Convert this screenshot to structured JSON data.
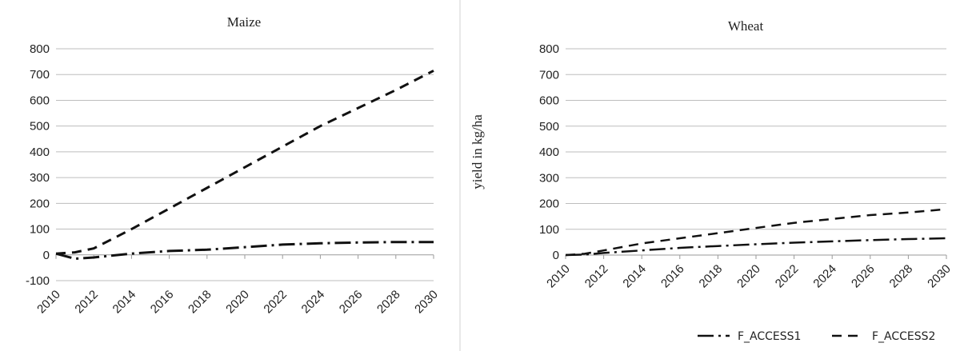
{
  "chart_data": [
    {
      "type": "line",
      "title": "Maize",
      "xlabel": "",
      "ylabel": "",
      "ylim": [
        -100,
        800
      ],
      "yticks": [
        -100,
        0,
        100,
        200,
        300,
        400,
        500,
        600,
        700,
        800
      ],
      "xlim": [
        2010,
        2030
      ],
      "xticks": [
        2010,
        2012,
        2014,
        2016,
        2018,
        2020,
        2022,
        2024,
        2026,
        2028,
        2030
      ],
      "grid": true,
      "series": [
        {
          "name": "F_ACCESS1",
          "x": [
            2010,
            2011,
            2012,
            2014,
            2016,
            2018,
            2020,
            2022,
            2024,
            2026,
            2028,
            2030
          ],
          "y": [
            5,
            -15,
            -10,
            5,
            15,
            20,
            30,
            40,
            45,
            48,
            50,
            50
          ]
        },
        {
          "name": "F_ACCESS2",
          "x": [
            2010,
            2011,
            2012,
            2014,
            2016,
            2018,
            2020,
            2022,
            2024,
            2026,
            2028,
            2030
          ],
          "y": [
            5,
            10,
            25,
            100,
            180,
            260,
            340,
            420,
            500,
            570,
            640,
            715
          ]
        }
      ]
    },
    {
      "type": "line",
      "title": "Wheat",
      "xlabel": "",
      "ylabel": "yield  in kg/ha",
      "ylim": [
        0,
        800
      ],
      "yticks": [
        0,
        100,
        200,
        300,
        400,
        500,
        600,
        700,
        800
      ],
      "xlim": [
        2010,
        2030
      ],
      "xticks": [
        2010,
        2012,
        2014,
        2016,
        2018,
        2020,
        2022,
        2024,
        2026,
        2028,
        2030
      ],
      "grid": true,
      "legend": "bottom-right",
      "series": [
        {
          "name": "F_ACCESS1",
          "x": [
            2010,
            2011,
            2012,
            2014,
            2016,
            2018,
            2020,
            2022,
            2024,
            2026,
            2028,
            2030
          ],
          "y": [
            0,
            2,
            8,
            18,
            28,
            35,
            42,
            48,
            53,
            58,
            62,
            65
          ]
        },
        {
          "name": "F_ACCESS2",
          "x": [
            2010,
            2011,
            2012,
            2014,
            2016,
            2018,
            2020,
            2022,
            2024,
            2026,
            2028,
            2030
          ],
          "y": [
            0,
            5,
            18,
            45,
            65,
            85,
            105,
            125,
            140,
            155,
            165,
            178
          ]
        }
      ]
    }
  ],
  "legend": {
    "items": [
      {
        "label": "F_ACCESS1",
        "dash": "20,6,3,6"
      },
      {
        "label": "F_ACCESS2",
        "dash": "12,8"
      }
    ]
  },
  "colors": {
    "line": "#111111",
    "grid": "#bdbdbd"
  }
}
